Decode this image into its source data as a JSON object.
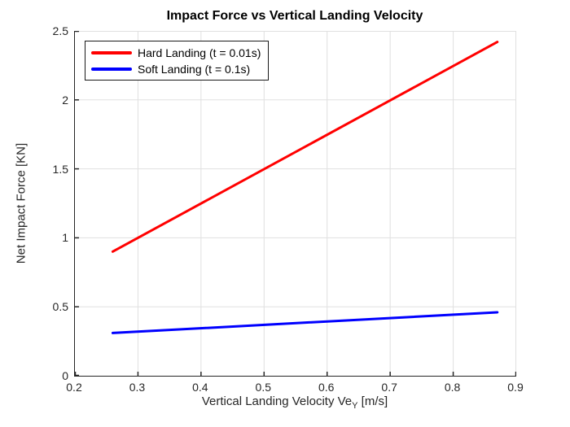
{
  "chart_data": {
    "type": "line",
    "title": "Impact Force vs Vertical Landing Velocity",
    "xlabel": {
      "pre": "Vertical Landing Velocity Ve",
      "sub": "Y",
      "post": " [m/s]"
    },
    "ylabel": "Net Impact Force [KN]",
    "xlim": [
      0.2,
      0.9
    ],
    "ylim": [
      0,
      2.5
    ],
    "xticks": [
      0.2,
      0.3,
      0.4,
      0.5,
      0.6,
      0.7,
      0.8,
      0.9
    ],
    "yticks": [
      0,
      0.5,
      1,
      1.5,
      2,
      2.5
    ],
    "grid": true,
    "legend": {
      "position": "top-left"
    },
    "series": [
      {
        "name": "Hard Landing (t = 0.01s)",
        "color": "#FF0000",
        "x": [
          0.26,
          0.87
        ],
        "y": [
          0.9,
          2.42
        ]
      },
      {
        "name": "Soft Landing (t = 0.1s)",
        "color": "#0000FF",
        "x": [
          0.26,
          0.87
        ],
        "y": [
          0.31,
          0.46
        ]
      }
    ],
    "colors": {
      "grid": "#E0E0E0",
      "axis": "#262626",
      "tick_label": "#262626",
      "background": "#FFFFFF"
    }
  }
}
